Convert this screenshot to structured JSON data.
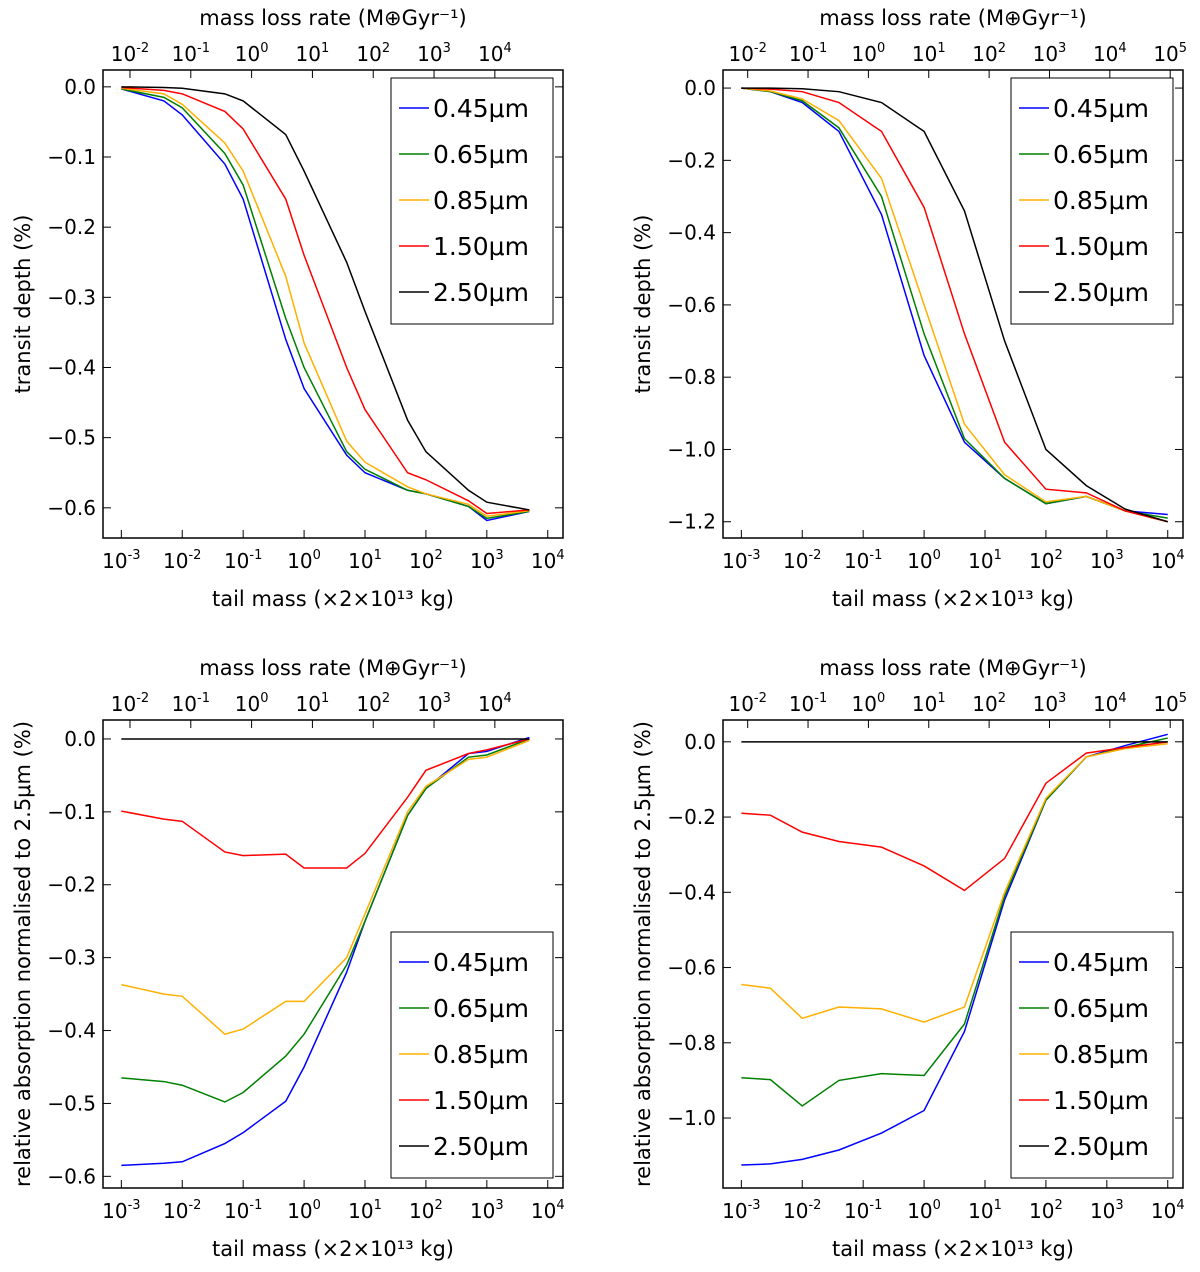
{
  "chart_data": [
    {
      "type": "line",
      "xscale": "log",
      "x2scale": "log",
      "legend": "upper right",
      "xlabel": "tail mass (×2×10¹³ kg)",
      "x2label": "mass loss rate (M⊕Gyr⁻¹)",
      "ylabel": "transit depth (%)",
      "xlim": [
        0.0005,
        17800
      ],
      "x2lim": [
        0.0036,
        132000
      ],
      "ylim": [
        -0.643,
        0.024
      ],
      "xticks": [
        {
          "value": 0.001,
          "label": "10",
          "exponent": "-3"
        },
        {
          "value": 0.01,
          "label": "10",
          "exponent": "-2"
        },
        {
          "value": 0.1,
          "label": "10",
          "exponent": "-1"
        },
        {
          "value": 1,
          "label": "10",
          "exponent": "0"
        },
        {
          "value": 10,
          "label": "10",
          "exponent": "1"
        },
        {
          "value": 100,
          "label": "10",
          "exponent": "2"
        },
        {
          "value": 1000,
          "label": "10",
          "exponent": "3"
        },
        {
          "value": 10000,
          "label": "10",
          "exponent": "4"
        }
      ],
      "x2ticks": [
        {
          "value": 0.01,
          "label": "10",
          "exponent": "-2"
        },
        {
          "value": 0.1,
          "label": "10",
          "exponent": "-1"
        },
        {
          "value": 1,
          "label": "10",
          "exponent": "0"
        },
        {
          "value": 10,
          "label": "10",
          "exponent": "1"
        },
        {
          "value": 100,
          "label": "10",
          "exponent": "2"
        },
        {
          "value": 1000,
          "label": "10",
          "exponent": "3"
        },
        {
          "value": 10000,
          "label": "10",
          "exponent": "4"
        }
      ],
      "yticks": [
        {
          "value": 0,
          "label": "0.0"
        },
        {
          "value": -0.1,
          "label": "−0.1"
        },
        {
          "value": -0.2,
          "label": "−0.2"
        },
        {
          "value": -0.3,
          "label": "−0.3"
        },
        {
          "value": -0.4,
          "label": "−0.4"
        },
        {
          "value": -0.5,
          "label": "−0.5"
        },
        {
          "value": -0.6,
          "label": "−0.6"
        }
      ],
      "x": [
        0.001,
        0.005,
        0.01,
        0.05,
        0.1,
        0.5,
        1,
        5,
        10,
        50,
        100,
        500,
        1000,
        5000
      ],
      "series": [
        {
          "name": "0.45μm",
          "color": "#0000ff",
          "values": [
            -0.003,
            -0.02,
            -0.04,
            -0.11,
            -0.16,
            -0.36,
            -0.43,
            -0.525,
            -0.55,
            -0.575,
            -0.58,
            -0.598,
            -0.618,
            -0.605
          ]
        },
        {
          "name": "0.65μm",
          "color": "#008000",
          "values": [
            -0.003,
            -0.015,
            -0.03,
            -0.095,
            -0.14,
            -0.33,
            -0.4,
            -0.52,
            -0.545,
            -0.575,
            -0.58,
            -0.598,
            -0.615,
            -0.605
          ]
        },
        {
          "name": "0.85μm",
          "color": "#ffb000",
          "values": [
            -0.002,
            -0.01,
            -0.025,
            -0.08,
            -0.12,
            -0.27,
            -0.365,
            -0.505,
            -0.535,
            -0.57,
            -0.58,
            -0.595,
            -0.612,
            -0.604
          ]
        },
        {
          "name": "1.50μm",
          "color": "#ff0000",
          "values": [
            -0.001,
            -0.005,
            -0.01,
            -0.035,
            -0.06,
            -0.16,
            -0.24,
            -0.4,
            -0.46,
            -0.55,
            -0.56,
            -0.59,
            -0.608,
            -0.603
          ]
        },
        {
          "name": "2.50μm",
          "color": "#000000",
          "values": [
            0,
            -0.001,
            -0.002,
            -0.01,
            -0.02,
            -0.068,
            -0.12,
            -0.25,
            -0.32,
            -0.475,
            -0.52,
            -0.575,
            -0.592,
            -0.603
          ]
        }
      ]
    },
    {
      "type": "line",
      "xscale": "log",
      "x2scale": "log",
      "legend": "upper right",
      "xlabel": "tail mass (×2×10¹³ kg)",
      "x2label": "mass loss rate (M⊕Gyr⁻¹)",
      "ylabel": "transit depth (%)",
      "xlim": [
        0.0005,
        17800
      ],
      "x2lim": [
        0.0039,
        163000
      ],
      "ylim": [
        -1.245,
        0.05
      ],
      "xticks": [
        {
          "value": 0.001,
          "label": "10",
          "exponent": "-3"
        },
        {
          "value": 0.01,
          "label": "10",
          "exponent": "-2"
        },
        {
          "value": 0.1,
          "label": "10",
          "exponent": "-1"
        },
        {
          "value": 1,
          "label": "10",
          "exponent": "0"
        },
        {
          "value": 10,
          "label": "10",
          "exponent": "1"
        },
        {
          "value": 100,
          "label": "10",
          "exponent": "2"
        },
        {
          "value": 1000,
          "label": "10",
          "exponent": "3"
        },
        {
          "value": 10000,
          "label": "10",
          "exponent": "4"
        }
      ],
      "x2ticks": [
        {
          "value": 0.01,
          "label": "10",
          "exponent": "-2"
        },
        {
          "value": 0.1,
          "label": "10",
          "exponent": "-1"
        },
        {
          "value": 1,
          "label": "10",
          "exponent": "0"
        },
        {
          "value": 10,
          "label": "10",
          "exponent": "1"
        },
        {
          "value": 100,
          "label": "10",
          "exponent": "2"
        },
        {
          "value": 1000,
          "label": "10",
          "exponent": "3"
        },
        {
          "value": 10000,
          "label": "10",
          "exponent": "4"
        },
        {
          "value": 100000,
          "label": "10",
          "exponent": "5"
        }
      ],
      "yticks": [
        {
          "value": 0,
          "label": "0.0"
        },
        {
          "value": -0.2,
          "label": "−0.2"
        },
        {
          "value": -0.4,
          "label": "−0.4"
        },
        {
          "value": -0.6,
          "label": "−0.6"
        },
        {
          "value": -0.8,
          "label": "−0.8"
        },
        {
          "value": -1.0,
          "label": "−1.0"
        },
        {
          "value": -1.2,
          "label": "−1.2"
        }
      ],
      "x": [
        0.001,
        0.003,
        0.01,
        0.04,
        0.2,
        1,
        4.6,
        21,
        100,
        460,
        2000,
        10000
      ],
      "series": [
        {
          "name": "0.45μm",
          "color": "#0000ff",
          "values": [
            0,
            -0.01,
            -0.04,
            -0.12,
            -0.35,
            -0.74,
            -0.98,
            -1.08,
            -1.15,
            -1.13,
            -1.17,
            -1.18
          ]
        },
        {
          "name": "0.65μm",
          "color": "#008000",
          "values": [
            0,
            -0.01,
            -0.035,
            -0.11,
            -0.3,
            -0.68,
            -0.97,
            -1.08,
            -1.15,
            -1.13,
            -1.17,
            -1.19
          ]
        },
        {
          "name": "0.85μm",
          "color": "#ffb000",
          "values": [
            0,
            -0.008,
            -0.03,
            -0.09,
            -0.25,
            -0.6,
            -0.93,
            -1.07,
            -1.145,
            -1.13,
            -1.17,
            -1.2
          ]
        },
        {
          "name": "1.50μm",
          "color": "#ff0000",
          "values": [
            0,
            -0.003,
            -0.01,
            -0.04,
            -0.12,
            -0.33,
            -0.68,
            -0.98,
            -1.11,
            -1.12,
            -1.17,
            -1.2
          ]
        },
        {
          "name": "2.50μm",
          "color": "#000000",
          "values": [
            0,
            0,
            -0.002,
            -0.01,
            -0.04,
            -0.12,
            -0.34,
            -0.7,
            -1.0,
            -1.1,
            -1.165,
            -1.2
          ]
        }
      ]
    },
    {
      "type": "line",
      "xscale": "log",
      "x2scale": "log",
      "legend": "lower right",
      "xlabel": "tail mass (×2×10¹³ kg)",
      "x2label": "mass loss rate (M⊕Gyr⁻¹)",
      "ylabel": "relative absorption normalised to 2.5μm (%)",
      "xlim": [
        0.0005,
        17800
      ],
      "x2lim": [
        0.0036,
        132000
      ],
      "ylim": [
        -0.616,
        0.026
      ],
      "xticks": [
        {
          "value": 0.001,
          "label": "10",
          "exponent": "-3"
        },
        {
          "value": 0.01,
          "label": "10",
          "exponent": "-2"
        },
        {
          "value": 0.1,
          "label": "10",
          "exponent": "-1"
        },
        {
          "value": 1,
          "label": "10",
          "exponent": "0"
        },
        {
          "value": 10,
          "label": "10",
          "exponent": "1"
        },
        {
          "value": 100,
          "label": "10",
          "exponent": "2"
        },
        {
          "value": 1000,
          "label": "10",
          "exponent": "3"
        },
        {
          "value": 10000,
          "label": "10",
          "exponent": "4"
        }
      ],
      "x2ticks": [
        {
          "value": 0.01,
          "label": "10",
          "exponent": "-2"
        },
        {
          "value": 0.1,
          "label": "10",
          "exponent": "-1"
        },
        {
          "value": 1,
          "label": "10",
          "exponent": "0"
        },
        {
          "value": 10,
          "label": "10",
          "exponent": "1"
        },
        {
          "value": 100,
          "label": "10",
          "exponent": "2"
        },
        {
          "value": 1000,
          "label": "10",
          "exponent": "3"
        },
        {
          "value": 10000,
          "label": "10",
          "exponent": "4"
        }
      ],
      "yticks": [
        {
          "value": 0,
          "label": "0.0"
        },
        {
          "value": -0.1,
          "label": "−0.1"
        },
        {
          "value": -0.2,
          "label": "−0.2"
        },
        {
          "value": -0.3,
          "label": "−0.3"
        },
        {
          "value": -0.4,
          "label": "−0.4"
        },
        {
          "value": -0.5,
          "label": "−0.5"
        },
        {
          "value": -0.6,
          "label": "−0.6"
        }
      ],
      "x": [
        0.001,
        0.005,
        0.01,
        0.05,
        0.1,
        0.5,
        1,
        5,
        10,
        50,
        100,
        500,
        1000,
        5000
      ],
      "series": [
        {
          "name": "0.45μm",
          "color": "#0000ff",
          "values": [
            -0.585,
            -0.582,
            -0.58,
            -0.555,
            -0.54,
            -0.497,
            -0.45,
            -0.32,
            -0.25,
            -0.105,
            -0.068,
            -0.02,
            -0.017,
            0.002
          ]
        },
        {
          "name": "0.65μm",
          "color": "#008000",
          "values": [
            -0.465,
            -0.47,
            -0.475,
            -0.498,
            -0.485,
            -0.435,
            -0.405,
            -0.31,
            -0.25,
            -0.105,
            -0.068,
            -0.025,
            -0.022,
            0
          ]
        },
        {
          "name": "0.85μm",
          "color": "#ffb000",
          "values": [
            -0.337,
            -0.35,
            -0.353,
            -0.405,
            -0.398,
            -0.36,
            -0.36,
            -0.3,
            -0.24,
            -0.1,
            -0.065,
            -0.028,
            -0.025,
            -0.002
          ]
        },
        {
          "name": "1.50μm",
          "color": "#ff0000",
          "values": [
            -0.099,
            -0.11,
            -0.113,
            -0.155,
            -0.16,
            -0.158,
            -0.177,
            -0.177,
            -0.157,
            -0.08,
            -0.043,
            -0.02,
            -0.015,
            0
          ]
        },
        {
          "name": "2.50μm",
          "color": "#000000",
          "values": [
            0,
            0,
            0,
            0,
            0,
            0,
            0,
            0,
            0,
            0,
            0,
            0,
            0,
            0
          ]
        }
      ]
    },
    {
      "type": "line",
      "xscale": "log",
      "x2scale": "log",
      "legend": "lower right",
      "xlabel": "tail mass (×2×10¹³ kg)",
      "x2label": "mass loss rate (M⊕Gyr⁻¹)",
      "ylabel": "relative absorption normalised to 2.5μm (%)",
      "xlim": [
        0.0005,
        17800
      ],
      "x2lim": [
        0.0039,
        163000
      ],
      "ylim": [
        -1.186,
        0.058
      ],
      "xticks": [
        {
          "value": 0.001,
          "label": "10",
          "exponent": "-3"
        },
        {
          "value": 0.01,
          "label": "10",
          "exponent": "-2"
        },
        {
          "value": 0.1,
          "label": "10",
          "exponent": "-1"
        },
        {
          "value": 1,
          "label": "10",
          "exponent": "0"
        },
        {
          "value": 10,
          "label": "10",
          "exponent": "1"
        },
        {
          "value": 100,
          "label": "10",
          "exponent": "2"
        },
        {
          "value": 1000,
          "label": "10",
          "exponent": "3"
        },
        {
          "value": 10000,
          "label": "10",
          "exponent": "4"
        }
      ],
      "x2ticks": [
        {
          "value": 0.01,
          "label": "10",
          "exponent": "-2"
        },
        {
          "value": 0.1,
          "label": "10",
          "exponent": "-1"
        },
        {
          "value": 1,
          "label": "10",
          "exponent": "0"
        },
        {
          "value": 10,
          "label": "10",
          "exponent": "1"
        },
        {
          "value": 100,
          "label": "10",
          "exponent": "2"
        },
        {
          "value": 1000,
          "label": "10",
          "exponent": "3"
        },
        {
          "value": 10000,
          "label": "10",
          "exponent": "4"
        },
        {
          "value": 100000,
          "label": "10",
          "exponent": "5"
        }
      ],
      "yticks": [
        {
          "value": 0,
          "label": "0.0"
        },
        {
          "value": -0.2,
          "label": "−0.2"
        },
        {
          "value": -0.4,
          "label": "−0.4"
        },
        {
          "value": -0.6,
          "label": "−0.6"
        },
        {
          "value": -0.8,
          "label": "−0.8"
        },
        {
          "value": -1.0,
          "label": "−1.0"
        }
      ],
      "x": [
        0.001,
        0.003,
        0.01,
        0.04,
        0.2,
        1,
        4.6,
        21,
        100,
        460,
        2000,
        10000
      ],
      "series": [
        {
          "name": "0.45μm",
          "color": "#0000ff",
          "values": [
            -1.125,
            -1.122,
            -1.11,
            -1.085,
            -1.04,
            -0.98,
            -0.77,
            -0.42,
            -0.155,
            -0.04,
            -0.01,
            0.02
          ]
        },
        {
          "name": "0.65μm",
          "color": "#008000",
          "values": [
            -0.893,
            -0.898,
            -0.968,
            -0.9,
            -0.882,
            -0.887,
            -0.75,
            -0.41,
            -0.155,
            -0.04,
            -0.015,
            0.01
          ]
        },
        {
          "name": "0.85μm",
          "color": "#ffb000",
          "values": [
            -0.645,
            -0.655,
            -0.735,
            -0.705,
            -0.71,
            -0.745,
            -0.705,
            -0.4,
            -0.15,
            -0.04,
            -0.018,
            -0.005
          ]
        },
        {
          "name": "1.50μm",
          "color": "#ff0000",
          "values": [
            -0.19,
            -0.195,
            -0.24,
            -0.265,
            -0.28,
            -0.33,
            -0.395,
            -0.31,
            -0.11,
            -0.03,
            -0.015,
            0
          ]
        },
        {
          "name": "2.50μm",
          "color": "#000000",
          "values": [
            0,
            0,
            0,
            0,
            0,
            0,
            0,
            0,
            0,
            0,
            0,
            0
          ]
        }
      ]
    }
  ]
}
